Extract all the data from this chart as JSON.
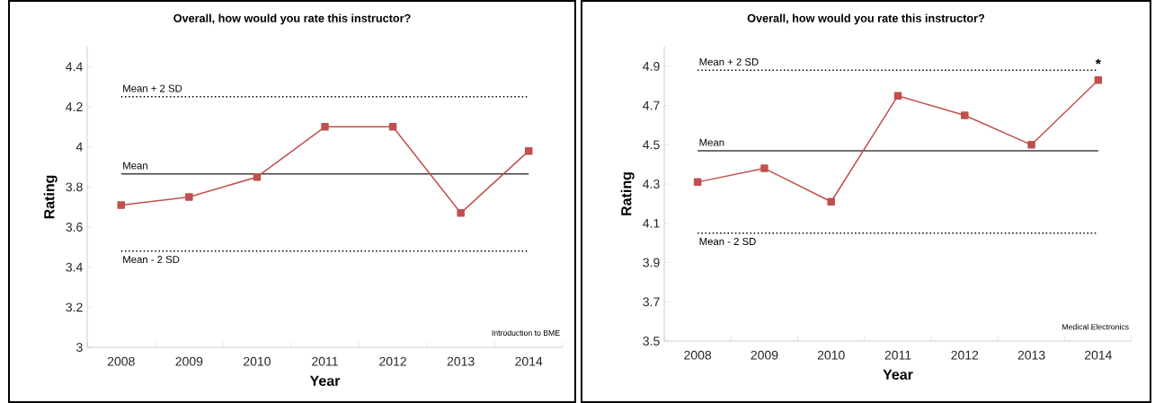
{
  "chart_data": [
    {
      "type": "line",
      "title": "Overall, how would you rate this instructor?",
      "xlabel": "Year",
      "ylabel": "Rating",
      "categories": [
        "2008",
        "2009",
        "2010",
        "2011",
        "2012",
        "2013",
        "2014"
      ],
      "series": [
        {
          "color": "#c0504d",
          "values": [
            3.71,
            3.75,
            3.85,
            4.1,
            4.1,
            3.67,
            3.98
          ]
        }
      ],
      "ylim": [
        3,
        4.5
      ],
      "yticks": [
        3,
        3.2,
        3.4,
        3.6,
        3.8,
        4,
        4.2,
        4.4
      ],
      "ref_lines": [
        {
          "axis": "y",
          "value": 4.25,
          "label": "Mean + 2 SD",
          "color": "#000000",
          "line_style": "dotted"
        },
        {
          "axis": "y",
          "value": 3.865,
          "label": "Mean",
          "color": "#404040",
          "line_style": "solid"
        },
        {
          "axis": "y",
          "value": 3.48,
          "label": "Mean - 2 SD",
          "color": "#000000",
          "line_style": "dotted"
        }
      ],
      "annotations": [
        "Introduction to BME"
      ],
      "marker": "square"
    },
    {
      "type": "line",
      "title": "Overall, how would you rate this instructor?",
      "xlabel": "Year",
      "ylabel": "Rating",
      "categories": [
        "2008",
        "2009",
        "2010",
        "2011",
        "2012",
        "2013",
        "2014"
      ],
      "series": [
        {
          "color": "#c0504d",
          "values": [
            4.31,
            4.38,
            4.21,
            4.75,
            4.65,
            4.5,
            4.83
          ]
        }
      ],
      "ylim": [
        3.5,
        5.0
      ],
      "yticks": [
        3.5,
        3.7,
        3.9,
        4.1,
        4.3,
        4.5,
        4.7,
        4.9
      ],
      "ref_lines": [
        {
          "axis": "y",
          "value": 4.88,
          "label": "Mean + 2 SD",
          "color": "#000000",
          "line_style": "dotted"
        },
        {
          "axis": "y",
          "value": 4.47,
          "label": "Mean",
          "color": "#404040",
          "line_style": "solid"
        },
        {
          "axis": "y",
          "value": 4.05,
          "label": "Mean - 2 SD",
          "color": "#000000",
          "line_style": "dotted"
        }
      ],
      "annotations": [
        {
          "text": "*",
          "x": "2014",
          "y": 4.88
        },
        "Medical Electronics"
      ],
      "marker": "square"
    }
  ]
}
